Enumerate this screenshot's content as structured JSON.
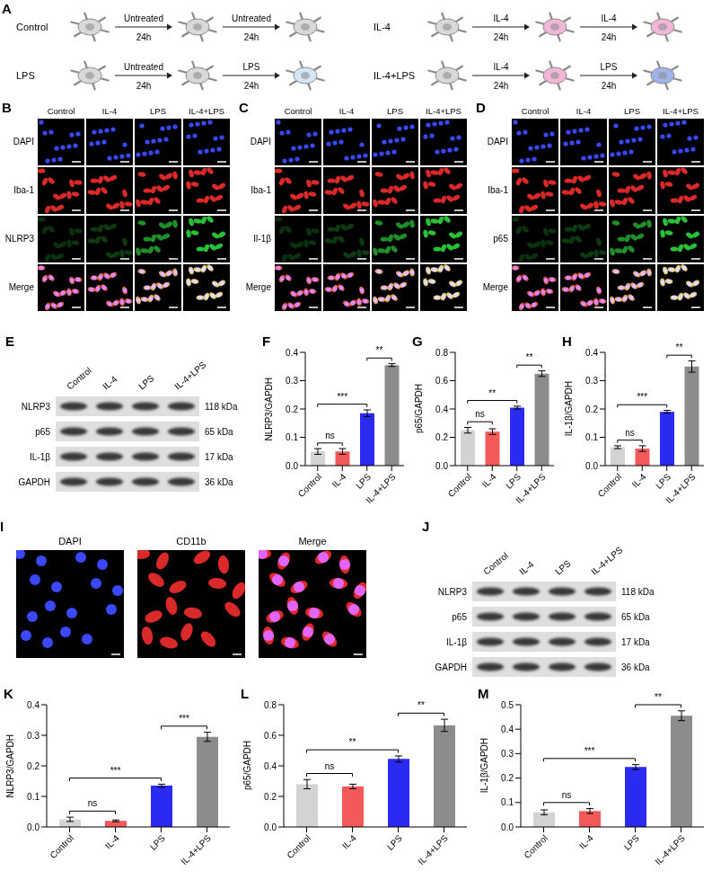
{
  "figure": {
    "schematic": {
      "panel": "A",
      "groups": [
        {
          "label": "Control",
          "steps": [
            {
              "treatment": "Untreated",
              "time": "24h"
            },
            {
              "treatment": "Untreated",
              "time": "24h"
            }
          ],
          "colors": [
            "#d9d9d9",
            "#d9d9d9",
            "#d9d9d9"
          ]
        },
        {
          "label": "IL-4",
          "steps": [
            {
              "treatment": "IL-4",
              "time": "24h"
            },
            {
              "treatment": "IL-4",
              "time": "24h"
            }
          ],
          "colors": [
            "#d9d9d9",
            "#f2b6d6",
            "#f2b6d6"
          ]
        },
        {
          "label": "LPS",
          "steps": [
            {
              "treatment": "Untreated",
              "time": "24h"
            },
            {
              "treatment": "LPS",
              "time": "24h"
            }
          ],
          "colors": [
            "#d9d9d9",
            "#d9d9d9",
            "#d4e6f8"
          ]
        },
        {
          "label": "IL-4+LPS",
          "steps": [
            {
              "treatment": "IL-4",
              "time": "24h"
            },
            {
              "treatment": "LPS",
              "time": "24h"
            }
          ],
          "colors": [
            "#d9d9d9",
            "#f2b6d6",
            "#9fb2ea"
          ]
        }
      ]
    },
    "immunofluorescence": [
      {
        "panel": "B",
        "columns": [
          "Control",
          "IL-4",
          "LPS",
          "IL-4+LPS"
        ],
        "rows": [
          {
            "label": "DAPI",
            "color": "#3a48ff"
          },
          {
            "label": "Iba-1",
            "color": "#ff3030"
          },
          {
            "label": "NLRP3",
            "color": "#30e040"
          },
          {
            "label": "Merge"
          }
        ]
      },
      {
        "panel": "C",
        "columns": [
          "Control",
          "IL-4",
          "LPS",
          "IL-4+LPS"
        ],
        "rows": [
          {
            "label": "DAPI",
            "color": "#3a48ff"
          },
          {
            "label": "Iba-1",
            "color": "#ff3030"
          },
          {
            "label": "Il-1β",
            "color": "#30e040"
          },
          {
            "label": "Merge"
          }
        ]
      },
      {
        "panel": "D",
        "columns": [
          "Control",
          "IL-4",
          "LPS",
          "IL-4+LPS"
        ],
        "rows": [
          {
            "label": "DAPI",
            "color": "#3a48ff"
          },
          {
            "label": "Iba-1",
            "color": "#ff3030"
          },
          {
            "label": "p65",
            "color": "#30e040"
          },
          {
            "label": "Merge"
          }
        ]
      }
    ],
    "blots": [
      {
        "panel": "E",
        "lanes": [
          "Control",
          "IL-4",
          "LPS",
          "IL-4+LPS"
        ],
        "bands": [
          {
            "protein": "NLRP3",
            "size": "118 kDa"
          },
          {
            "protein": "p65",
            "size": "65 kDa"
          },
          {
            "protein": "IL-1β",
            "size": "17 kDa"
          },
          {
            "protein": "GAPDH",
            "size": "36 kDa"
          }
        ]
      },
      {
        "panel": "J",
        "lanes": [
          "Control",
          "IL-4",
          "LPS",
          "IL-4+LPS"
        ],
        "bands": [
          {
            "protein": "NLRP3",
            "size": "118 kDa"
          },
          {
            "protein": "p65",
            "size": "65 kDa"
          },
          {
            "protein": "IL-1β",
            "size": "17 kDa"
          },
          {
            "protein": "GAPDH",
            "size": "36 kDa"
          }
        ]
      }
    ],
    "staining": {
      "panel": "I",
      "images": [
        {
          "label": "DAPI",
          "color": "#3a48ff"
        },
        {
          "label": "CD11b",
          "color": "#ff3030"
        },
        {
          "label": "Merge"
        }
      ]
    }
  },
  "chart_data": [
    {
      "panel": "F",
      "type": "bar",
      "y_label": "NLRP3/GAPDH",
      "categories": [
        "Control",
        "IL-4",
        "LPS",
        "IL-4+LPS"
      ],
      "values": [
        0.05,
        0.05,
        0.185,
        0.355
      ],
      "errors": [
        0.01,
        0.01,
        0.012,
        0.005
      ],
      "colors": [
        "#d3d3d3",
        "#f25a5a",
        "#2a2af0",
        "#8c8c8c"
      ],
      "ylim": [
        0,
        0.4
      ],
      "yticks": [
        {
          "value": 0,
          "label": "0.0"
        },
        0.1,
        0.2,
        0.3,
        0.4
      ],
      "annotations": [
        {
          "from": "Control",
          "to": "IL-4",
          "label": "ns"
        },
        {
          "from": "Control",
          "to": "LPS",
          "label": "***"
        },
        {
          "from": "LPS",
          "to": "IL-4+LPS",
          "label": "**"
        }
      ]
    },
    {
      "panel": "G",
      "type": "bar",
      "y_label": "p65/GAPDH",
      "categories": [
        "Control",
        "IL-4",
        "LPS",
        "IL-4+LPS"
      ],
      "values": [
        0.25,
        0.24,
        0.41,
        0.65
      ],
      "errors": [
        0.02,
        0.02,
        0.01,
        0.02
      ],
      "colors": [
        "#d3d3d3",
        "#f25a5a",
        "#2a2af0",
        "#8c8c8c"
      ],
      "ylim": [
        0,
        0.8
      ],
      "yticks": [
        {
          "value": 0,
          "label": "0.0"
        },
        0.2,
        0.4,
        0.6,
        0.8
      ],
      "annotations": [
        {
          "from": "Control",
          "to": "IL-4",
          "label": "ns"
        },
        {
          "from": "Control",
          "to": "LPS",
          "label": "**"
        },
        {
          "from": "LPS",
          "to": "IL-4+LPS",
          "label": "**"
        }
      ]
    },
    {
      "panel": "H",
      "type": "bar",
      "y_label": "IL-1β/GAPDH",
      "categories": [
        "Control",
        "IL-4",
        "LPS",
        "IL-4+LPS"
      ],
      "values": [
        0.065,
        0.06,
        0.19,
        0.35
      ],
      "errors": [
        0.005,
        0.01,
        0.005,
        0.02
      ],
      "colors": [
        "#d3d3d3",
        "#f25a5a",
        "#2a2af0",
        "#8c8c8c"
      ],
      "ylim": [
        0,
        0.4
      ],
      "yticks": [
        {
          "value": 0,
          "label": "0.0"
        },
        0.1,
        0.2,
        0.3,
        0.4
      ],
      "annotations": [
        {
          "from": "Control",
          "to": "IL-4",
          "label": "ns"
        },
        {
          "from": "Control",
          "to": "LPS",
          "label": "***"
        },
        {
          "from": "LPS",
          "to": "IL-4+LPS",
          "label": "**"
        }
      ]
    },
    {
      "panel": "K",
      "type": "bar",
      "y_label": "NLRP3/GAPDH",
      "categories": [
        "Control",
        "IL-4",
        "LPS",
        "IL-4+LPS"
      ],
      "values": [
        0.025,
        0.02,
        0.135,
        0.295
      ],
      "errors": [
        0.007,
        0.003,
        0.005,
        0.015
      ],
      "colors": [
        "#d3d3d3",
        "#f25a5a",
        "#2a2af0",
        "#8c8c8c"
      ],
      "ylim": [
        0,
        0.4
      ],
      "yticks": [
        {
          "value": 0,
          "label": "0.0"
        },
        0.1,
        0.2,
        0.3,
        0.4
      ],
      "annotations": [
        {
          "from": "Control",
          "to": "IL-4",
          "label": "ns"
        },
        {
          "from": "Control",
          "to": "LPS",
          "label": "***"
        },
        {
          "from": "LPS",
          "to": "IL-4+LPS",
          "label": "***"
        }
      ]
    },
    {
      "panel": "L",
      "type": "bar",
      "y_label": "p65/GAPDH",
      "categories": [
        "Control",
        "IL-4",
        "LPS",
        "IL-4+LPS"
      ],
      "values": [
        0.28,
        0.265,
        0.445,
        0.665
      ],
      "errors": [
        0.03,
        0.015,
        0.02,
        0.04
      ],
      "colors": [
        "#d3d3d3",
        "#f25a5a",
        "#2a2af0",
        "#8c8c8c"
      ],
      "ylim": [
        0,
        0.8
      ],
      "yticks": [
        {
          "value": 0,
          "label": "0.0"
        },
        0.2,
        0.4,
        0.6,
        0.8
      ],
      "annotations": [
        {
          "from": "Control",
          "to": "IL-4",
          "label": "ns"
        },
        {
          "from": "Control",
          "to": "LPS",
          "label": "**"
        },
        {
          "from": "LPS",
          "to": "IL-4+LPS",
          "label": "**"
        }
      ]
    },
    {
      "panel": "M",
      "type": "bar",
      "y_label": "IL-1β/GAPDH",
      "categories": [
        "Control",
        "IL-4",
        "LPS",
        "IL-4+LPS"
      ],
      "values": [
        0.06,
        0.065,
        0.245,
        0.455
      ],
      "errors": [
        0.01,
        0.01,
        0.01,
        0.02
      ],
      "colors": [
        "#d3d3d3",
        "#f25a5a",
        "#2a2af0",
        "#8c8c8c"
      ],
      "ylim": [
        0,
        0.5
      ],
      "yticks": [
        {
          "value": 0,
          "label": "0.0"
        },
        0.1,
        0.2,
        0.3,
        0.4,
        0.5
      ],
      "annotations": [
        {
          "from": "Control",
          "to": "IL-4",
          "label": "ns"
        },
        {
          "from": "Control",
          "to": "LPS",
          "label": "***"
        },
        {
          "from": "LPS",
          "to": "IL-4+LPS",
          "label": "**"
        }
      ]
    }
  ]
}
